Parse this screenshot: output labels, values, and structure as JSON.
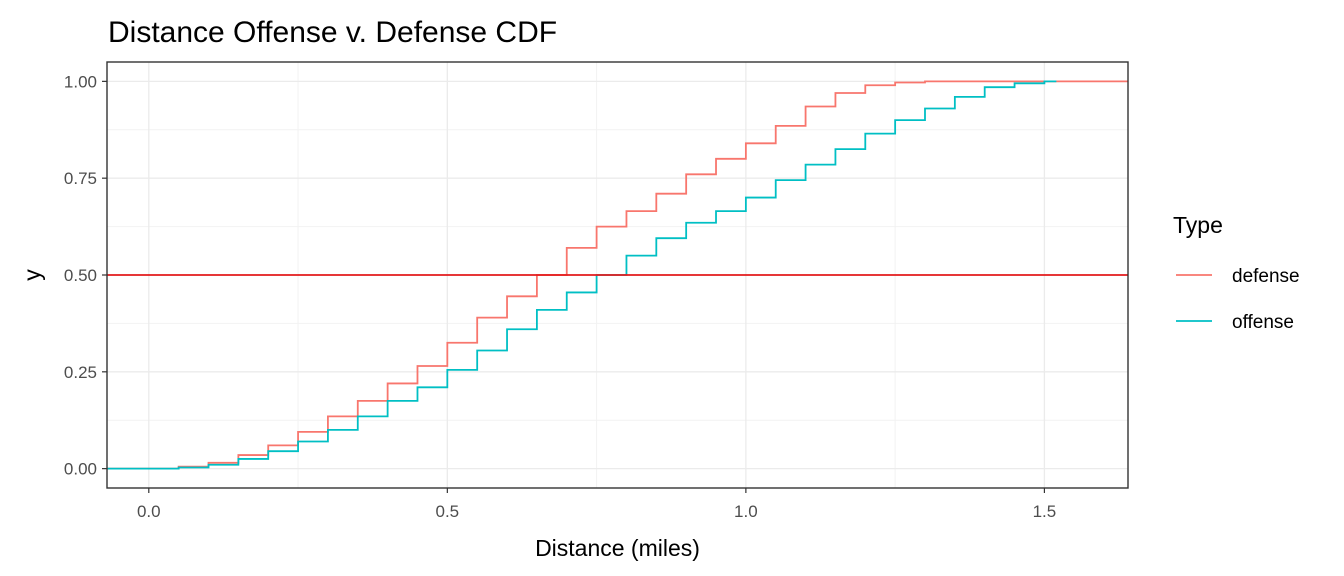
{
  "chart_data": {
    "type": "line",
    "title": "Distance Offense v. Defense CDF",
    "xlabel": "Distance (miles)",
    "ylabel": "y",
    "xlim": [
      -0.07,
      1.64
    ],
    "ylim": [
      -0.05,
      1.05
    ],
    "x_ticks": [
      {
        "value": 0.0,
        "label": "0.0"
      },
      {
        "value": 0.5,
        "label": "0.5"
      },
      {
        "value": 1.0,
        "label": "1.0"
      },
      {
        "value": 1.5,
        "label": "1.5"
      }
    ],
    "y_ticks": [
      {
        "value": 0.0,
        "label": "0.00"
      },
      {
        "value": 0.25,
        "label": "0.25"
      },
      {
        "value": 0.5,
        "label": "0.50"
      },
      {
        "value": 0.75,
        "label": "0.75"
      },
      {
        "value": 1.0,
        "label": "1.00"
      }
    ],
    "grid": true,
    "legend": {
      "title": "Type",
      "position": "right"
    },
    "hline": {
      "y": 0.5,
      "color": "#e31a1c"
    },
    "series": [
      {
        "name": "defense",
        "color": "#F8766D",
        "step": true,
        "x": [
          -0.07,
          0.0,
          0.05,
          0.1,
          0.15,
          0.2,
          0.25,
          0.3,
          0.35,
          0.4,
          0.45,
          0.5,
          0.55,
          0.6,
          0.65,
          0.7,
          0.75,
          0.8,
          0.85,
          0.9,
          0.95,
          1.0,
          1.05,
          1.1,
          1.15,
          1.2,
          1.25,
          1.3,
          1.35,
          1.4,
          1.45,
          1.5,
          1.55,
          1.64
        ],
        "y": [
          0.0,
          0.0,
          0.005,
          0.015,
          0.035,
          0.06,
          0.095,
          0.135,
          0.175,
          0.22,
          0.265,
          0.325,
          0.39,
          0.445,
          0.5,
          0.57,
          0.625,
          0.665,
          0.71,
          0.76,
          0.8,
          0.84,
          0.885,
          0.935,
          0.97,
          0.99,
          0.997,
          1.0,
          1.0,
          1.0,
          1.0,
          1.0,
          1.0,
          1.0
        ]
      },
      {
        "name": "offense",
        "color": "#00BFC4",
        "step": true,
        "x": [
          -0.07,
          0.0,
          0.05,
          0.1,
          0.15,
          0.2,
          0.25,
          0.3,
          0.35,
          0.4,
          0.45,
          0.5,
          0.55,
          0.6,
          0.65,
          0.7,
          0.75,
          0.8,
          0.85,
          0.9,
          0.95,
          1.0,
          1.05,
          1.1,
          1.15,
          1.2,
          1.25,
          1.3,
          1.35,
          1.4,
          1.45,
          1.5,
          1.52
        ],
        "y": [
          0.0,
          0.0,
          0.003,
          0.01,
          0.025,
          0.045,
          0.07,
          0.1,
          0.135,
          0.175,
          0.21,
          0.255,
          0.305,
          0.36,
          0.41,
          0.455,
          0.5,
          0.55,
          0.595,
          0.635,
          0.665,
          0.7,
          0.745,
          0.785,
          0.825,
          0.865,
          0.9,
          0.93,
          0.96,
          0.985,
          0.995,
          1.0,
          1.0
        ]
      }
    ]
  }
}
